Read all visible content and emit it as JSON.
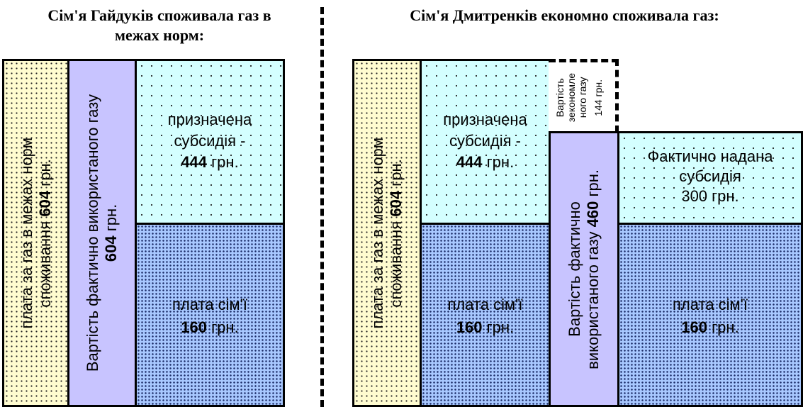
{
  "left": {
    "title_line1": "Сім'я Гайдуків споживала газ в",
    "title_line2": "межах норм:",
    "norm_fee": {
      "text": "плата за газ в межах норм",
      "line2_pre": "споживання",
      "amount": "604",
      "unit": "грн."
    },
    "actual_cost": {
      "text": "Вартість фактично використаного газу",
      "amount": "604",
      "unit": "грн."
    },
    "subsidy": {
      "line1": "призначена",
      "line2": "субсидія -",
      "amount": "444",
      "unit": "грн."
    },
    "family_pay": {
      "line1": "плата сім'ї",
      "amount": "160",
      "unit": "грн."
    }
  },
  "right": {
    "title": "Сім'я Дмитренків економно споживала газ:",
    "norm_fee": {
      "text": "плата за газ в межах норм",
      "line2_pre": "споживання",
      "amount": "604",
      "unit": "грн."
    },
    "subsidy": {
      "line1": "призначена",
      "line2": "субсидія -",
      "amount": "444",
      "unit": "грн."
    },
    "saved_gas": {
      "line1": "Вартість",
      "line2": "зекономле",
      "line3": "ного газу",
      "amount": "144 грн."
    },
    "actual_cost": {
      "line1": "Вартість фактично",
      "line2_pre": "використаного газу",
      "amount": "460",
      "unit": "грн."
    },
    "granted_subsidy": {
      "line1": "Фактично надана",
      "line2": "субсидія",
      "line3": "300 грн."
    },
    "family_pay": {
      "line1": "плата сім'ї",
      "amount": "160",
      "unit": "грн."
    }
  }
}
